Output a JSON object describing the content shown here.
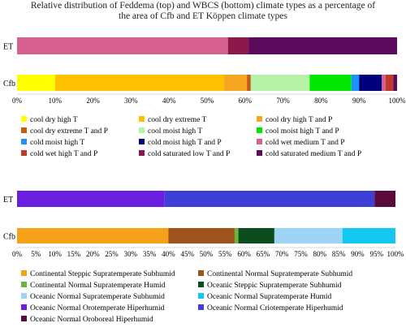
{
  "title_line1": "Relative distribution of Feddema (top) and WBCS (bottom) climate types as a percentage of",
  "title_line2": "the area of Cfb and ET Köppen climate types",
  "chart_data": [
    {
      "type": "bar",
      "orientation": "horizontal",
      "stacked": "percent",
      "categories": [
        "ET",
        "Cfb"
      ],
      "xlim": [
        0,
        100
      ],
      "xticks": [
        "0%",
        "10%",
        "20%",
        "30%",
        "40%",
        "50%",
        "60%",
        "70%",
        "80%",
        "90%",
        "100%"
      ],
      "legend_position": "bottom",
      "series": [
        {
          "name": "cool dry high T",
          "color": "#FFFF00",
          "values": [
            0,
            10
          ]
        },
        {
          "name": "cool dry extreme T",
          "color": "#FFC000",
          "values": [
            0,
            44.5
          ]
        },
        {
          "name": "cool dry high T and P",
          "color": "#F5A623",
          "values": [
            0,
            6
          ]
        },
        {
          "name": "cool dry extreme T and P",
          "color": "#C55A11",
          "values": [
            0,
            1
          ]
        },
        {
          "name": "cool moist high T",
          "color": "#B8F2A8",
          "values": [
            0,
            15.5
          ]
        },
        {
          "name": "cool moist high T and P",
          "color": "#00E600",
          "values": [
            0,
            11
          ]
        },
        {
          "name": "cold moist high T",
          "color": "#1E90FF",
          "values": [
            0,
            2
          ]
        },
        {
          "name": "cold moist high T and P",
          "color": "#00007A",
          "values": [
            0,
            6
          ]
        },
        {
          "name": "cold wet medium T and P",
          "color": "#D6608F",
          "values": [
            55.5,
            1
          ]
        },
        {
          "name": "cold wet high T and P",
          "color": "#C0392B",
          "values": [
            0,
            2
          ]
        },
        {
          "name": "cold saturated low T and P",
          "color": "#8B1A4A",
          "values": [
            5.5,
            0
          ]
        },
        {
          "name": "cold saturated medium T and P",
          "color": "#5B0A5E",
          "values": [
            39,
            1
          ]
        }
      ]
    },
    {
      "type": "bar",
      "orientation": "horizontal",
      "stacked": "percent",
      "categories": [
        "ET",
        "Cfb"
      ],
      "xlim": [
        0,
        100
      ],
      "xticks": [
        "0%",
        "5%",
        "10%",
        "15%",
        "20%",
        "25%",
        "30%",
        "35%",
        "40%",
        "45%",
        "50%",
        "55%",
        "60%",
        "65%",
        "70%",
        "75%",
        "80%",
        "85%",
        "90%",
        "95%",
        "100%"
      ],
      "legend_position": "bottom",
      "series": [
        {
          "name": "Continental Steppic Supratemperate Subhumid",
          "color": "#F6A11A",
          "values": [
            0,
            40
          ]
        },
        {
          "name": "Continental Normal Supratemperate Subhumid",
          "color": "#A0521C",
          "values": [
            0,
            17.5
          ]
        },
        {
          "name": "Continental Normal Supratemperate Humid",
          "color": "#6DB33F",
          "values": [
            0,
            1
          ]
        },
        {
          "name": "Oceanic Steppic Supratemperate Subhumid",
          "color": "#0B4D1E",
          "values": [
            0,
            9.5
          ]
        },
        {
          "name": "Oceanic Normal Supratemperate Subhumid",
          "color": "#9DD3F5",
          "values": [
            0,
            18
          ]
        },
        {
          "name": "Oceanic Normal Supratemperate Humid",
          "color": "#12C7F0",
          "values": [
            0,
            14
          ]
        },
        {
          "name": "Oceanic Normal Orotemperate Hiperhumid",
          "color": "#6A1FE0",
          "values": [
            39,
            0
          ]
        },
        {
          "name": "Oceanic Normal Criotemperate Hiperhumid",
          "color": "#3D3FD6",
          "values": [
            55.5,
            0
          ]
        },
        {
          "name": "Oceanic Normal Oroboreal Hiperhumid",
          "color": "#5B0A3A",
          "values": [
            5.5,
            0
          ]
        }
      ]
    }
  ]
}
